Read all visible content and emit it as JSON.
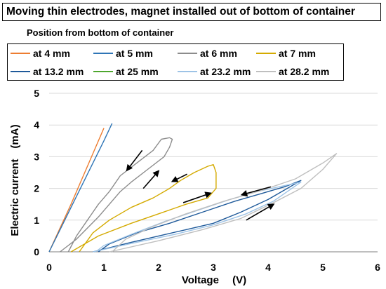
{
  "chart_data": {
    "type": "line",
    "title": "Moving thin electrodes, magnet installed out of bottom of container",
    "subtitle": "Position from bottom of container",
    "xlabel": "Voltage　 (V)",
    "ylabel": "Electric current　(mA)",
    "xlim": [
      0,
      6
    ],
    "ylim": [
      0,
      5
    ],
    "xticks": [
      "0",
      "1",
      "2",
      "3",
      "4",
      "5",
      "6"
    ],
    "yticks": [
      "0",
      "1",
      "2",
      "3",
      "4",
      "5"
    ],
    "grid": "horizontal",
    "legend_position": "top",
    "series": [
      {
        "name": "at 4 mm",
        "color": "#ED7D31",
        "points": [
          [
            0,
            0
          ],
          [
            0.2,
            0.75
          ],
          [
            0.4,
            1.5
          ],
          [
            0.6,
            2.3
          ],
          [
            0.8,
            3.1
          ],
          [
            1.0,
            3.9
          ]
        ]
      },
      {
        "name": "at 5 mm",
        "color": "#2E75B6",
        "points": [
          [
            0,
            0
          ],
          [
            0.2,
            0.7
          ],
          [
            0.4,
            1.4
          ],
          [
            0.6,
            2.1
          ],
          [
            0.8,
            2.8
          ],
          [
            1.0,
            3.5
          ],
          [
            1.15,
            4.05
          ]
        ]
      },
      {
        "name": "at 6 mm",
        "color": "#8C8C8C",
        "points": [
          [
            0.2,
            0
          ],
          [
            0.5,
            0.4
          ],
          [
            0.9,
            1.1
          ],
          [
            1.1,
            1.5
          ],
          [
            1.3,
            1.9
          ],
          [
            1.5,
            2.2
          ],
          [
            1.8,
            2.6
          ],
          [
            2.1,
            3.0
          ],
          [
            2.2,
            3.3
          ],
          [
            2.25,
            3.55
          ],
          [
            2.2,
            3.6
          ],
          [
            2.05,
            3.55
          ],
          [
            1.9,
            3.2
          ],
          [
            1.6,
            2.8
          ],
          [
            1.3,
            2.4
          ],
          [
            1.1,
            1.9
          ],
          [
            0.9,
            1.5
          ],
          [
            0.7,
            1.0
          ],
          [
            0.5,
            0.5
          ],
          [
            0.35,
            0
          ]
        ]
      },
      {
        "name": "at 7 mm",
        "color": "#D4AA00",
        "points": [
          [
            0.4,
            0
          ],
          [
            0.9,
            0.5
          ],
          [
            1.5,
            0.9
          ],
          [
            2.0,
            1.2
          ],
          [
            2.5,
            1.5
          ],
          [
            2.9,
            1.7
          ],
          [
            3.05,
            2.0
          ],
          [
            3.05,
            2.5
          ],
          [
            3.0,
            2.75
          ],
          [
            2.9,
            2.7
          ],
          [
            2.65,
            2.5
          ],
          [
            2.4,
            2.25
          ],
          [
            2.2,
            2.0
          ],
          [
            1.9,
            1.7
          ],
          [
            1.5,
            1.4
          ],
          [
            1.1,
            1.0
          ],
          [
            0.8,
            0.6
          ],
          [
            0.55,
            0
          ]
        ]
      },
      {
        "name": "at 13.2 mm",
        "color": "#1F5A9A",
        "points": [
          [
            0.8,
            0
          ],
          [
            1.5,
            0.3
          ],
          [
            2.0,
            0.5
          ],
          [
            2.5,
            0.7
          ],
          [
            3.0,
            0.9
          ],
          [
            3.5,
            1.25
          ],
          [
            4.0,
            1.65
          ],
          [
            4.3,
            1.95
          ],
          [
            4.6,
            2.25
          ],
          [
            4.3,
            2.05
          ],
          [
            3.9,
            1.85
          ],
          [
            3.4,
            1.6
          ],
          [
            2.8,
            1.25
          ],
          [
            2.2,
            0.9
          ],
          [
            1.6,
            0.6
          ],
          [
            1.1,
            0.25
          ],
          [
            0.9,
            0
          ]
        ]
      },
      {
        "name": "at 25 mm",
        "color": "#4EA72E",
        "points": []
      },
      {
        "name": "at 23.2 mm",
        "color": "#9DC3E6",
        "points": [
          [
            0.8,
            0
          ],
          [
            1.6,
            0.3
          ],
          [
            2.3,
            0.55
          ],
          [
            3.0,
            0.85
          ],
          [
            3.6,
            1.2
          ],
          [
            4.1,
            1.6
          ],
          [
            4.6,
            2.2
          ],
          [
            4.2,
            2.05
          ],
          [
            3.8,
            1.9
          ],
          [
            3.3,
            1.65
          ],
          [
            2.7,
            1.3
          ],
          [
            2.1,
            0.95
          ],
          [
            1.5,
            0.55
          ],
          [
            1.0,
            0.2
          ],
          [
            0.85,
            0
          ]
        ]
      },
      {
        "name": "at 28.2 mm",
        "color": "#BFBFBF",
        "points": [
          [
            1.1,
            0
          ],
          [
            2.0,
            0.35
          ],
          [
            2.8,
            0.7
          ],
          [
            3.5,
            1.05
          ],
          [
            4.1,
            1.55
          ],
          [
            4.6,
            2.0
          ],
          [
            5.0,
            2.6
          ],
          [
            5.25,
            3.1
          ],
          [
            5.0,
            2.8
          ],
          [
            4.5,
            2.3
          ],
          [
            3.9,
            1.95
          ],
          [
            3.2,
            1.6
          ],
          [
            2.5,
            1.2
          ],
          [
            1.9,
            0.8
          ],
          [
            1.4,
            0.4
          ],
          [
            1.15,
            0
          ]
        ]
      }
    ]
  }
}
